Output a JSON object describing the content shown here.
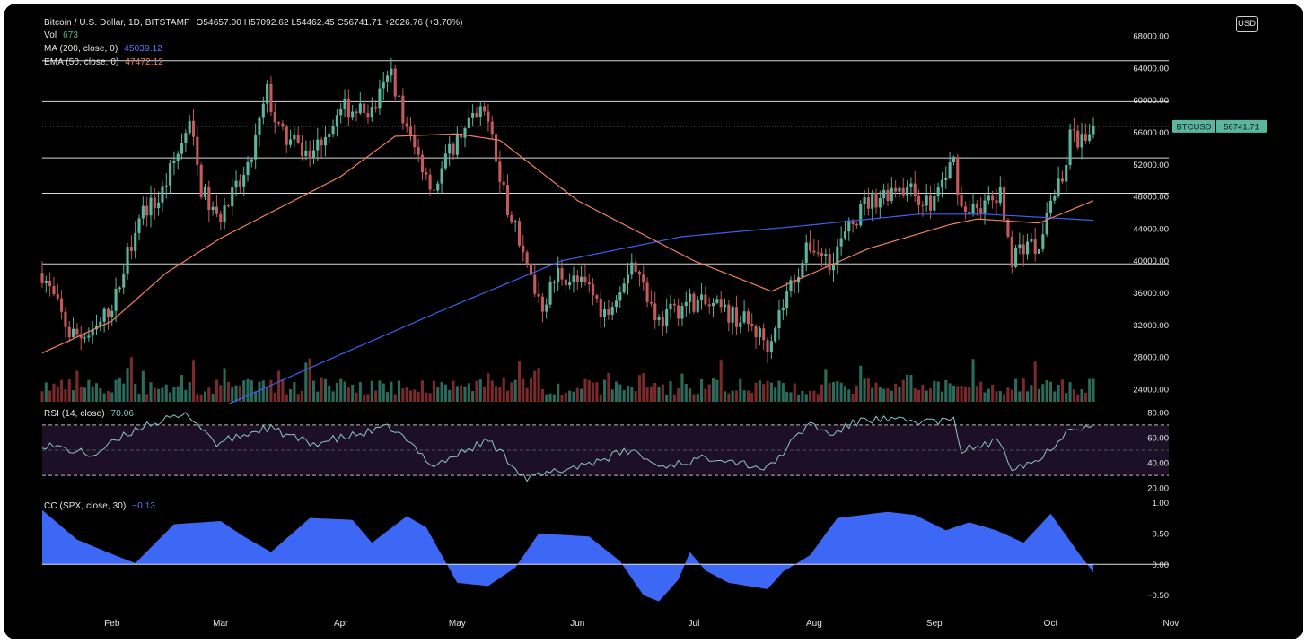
{
  "header": {
    "title": "Bitcoin / U.S. Dollar, 1D, BITSTAMP",
    "ohlc": "O54657.00 H57092.62 L54462.45 C56741.71 +2026.76 (+3.70%)",
    "vol_label": "Vol",
    "vol_value": "673",
    "ma_label": "MA (200, close, 0)",
    "ma_value": "45039.12",
    "ema_label": "EMA (50, close, 0)",
    "ema_value": "47472.12"
  },
  "currency_button": "USD",
  "last_price_tag": {
    "symbol": "BTCUSD",
    "price": "56741.71"
  },
  "rsi_panel": {
    "label": "RSI (14, close)",
    "value": "70.06"
  },
  "cc_panel": {
    "label": "CC (SPX, close, 30)",
    "value": "−0.13"
  },
  "colors": {
    "background": "#000000",
    "up": "#5bb59f",
    "down": "#c45a5a",
    "ma200": "#3f5ff0",
    "ema50": "#f08060",
    "rsi_line": "#8cc8c0",
    "rsi_band": "#1c0f26",
    "cc_fill": "#3d68f5",
    "text": "#e6e6e6"
  },
  "chart_data": [
    {
      "type": "candlestick",
      "title": "Bitcoin / U.S. Dollar, 1D, BITSTAMP",
      "x_ticks": [
        "Feb",
        "Mar",
        "Apr",
        "May",
        "Jun",
        "Jul",
        "Aug",
        "Sep",
        "Oct",
        "Nov"
      ],
      "y_ticks": [
        "24000.00",
        "28000.00",
        "32000.00",
        "36000.00",
        "40000.00",
        "44000.00",
        "48000.00",
        "52000.00",
        "56000.00",
        "60000.00",
        "64000.00",
        "68000.00"
      ],
      "ylim": [
        21500,
        70000
      ],
      "horizontal_levels": [
        64900,
        59800,
        52800,
        48400,
        39600
      ],
      "last_close": 56741.71,
      "price_anchors": [
        [
          "2021-01-14",
          38500
        ],
        [
          "2021-01-21",
          31000
        ],
        [
          "2021-01-27",
          30500
        ],
        [
          "2021-02-02",
          35500
        ],
        [
          "2021-02-08",
          46000
        ],
        [
          "2021-02-13",
          47500
        ],
        [
          "2021-02-21",
          57000
        ],
        [
          "2021-02-24",
          49000
        ],
        [
          "2021-02-28",
          45000
        ],
        [
          "2021-03-08",
          51000
        ],
        [
          "2021-03-13",
          61000
        ],
        [
          "2021-03-16",
          56000
        ],
        [
          "2021-03-24",
          53000
        ],
        [
          "2021-03-28",
          56000
        ],
        [
          "2021-04-02",
          59000
        ],
        [
          "2021-04-09",
          58500
        ],
        [
          "2021-04-14",
          63500
        ],
        [
          "2021-04-18",
          56000
        ],
        [
          "2021-04-25",
          49000
        ],
        [
          "2021-04-29",
          53500
        ],
        [
          "2021-05-03",
          57000
        ],
        [
          "2021-05-09",
          58500
        ],
        [
          "2021-05-12",
          49500
        ],
        [
          "2021-05-17",
          43000
        ],
        [
          "2021-05-19",
          39000
        ],
        [
          "2021-05-23",
          34500
        ],
        [
          "2021-05-27",
          38500
        ],
        [
          "2021-06-04",
          36500
        ],
        [
          "2021-06-08",
          33500
        ],
        [
          "2021-06-15",
          40000
        ],
        [
          "2021-06-22",
          32500
        ],
        [
          "2021-06-30",
          35000
        ],
        [
          "2021-07-07",
          34000
        ],
        [
          "2021-07-14",
          32500
        ],
        [
          "2021-07-20",
          29800
        ],
        [
          "2021-07-26",
          37000
        ],
        [
          "2021-07-31",
          42000
        ],
        [
          "2021-08-05",
          40000
        ],
        [
          "2021-08-14",
          47000
        ],
        [
          "2021-08-23",
          49500
        ],
        [
          "2021-08-31",
          47000
        ],
        [
          "2021-09-06",
          52500
        ],
        [
          "2021-09-08",
          46500
        ],
        [
          "2021-09-14",
          47000
        ],
        [
          "2021-09-18",
          48000
        ],
        [
          "2021-09-21",
          40500
        ],
        [
          "2021-09-25",
          42500
        ],
        [
          "2021-09-28",
          41000
        ],
        [
          "2021-10-01",
          48000
        ],
        [
          "2021-10-04",
          49500
        ],
        [
          "2021-10-06",
          55500
        ],
        [
          "2021-10-11",
          54500
        ],
        [
          "2021-10-12",
          56741.71
        ]
      ],
      "ma200_anchors": [
        [
          "2021-02-28",
          21500
        ],
        [
          "2021-03-28",
          27500
        ],
        [
          "2021-04-28",
          34000
        ],
        [
          "2021-05-28",
          40000
        ],
        [
          "2021-06-28",
          43000
        ],
        [
          "2021-07-28",
          44300
        ],
        [
          "2021-08-28",
          45800
        ],
        [
          "2021-09-14",
          45800
        ],
        [
          "2021-10-12",
          45039.12
        ]
      ],
      "ema50_anchors": [
        [
          "2021-01-14",
          28500
        ],
        [
          "2021-02-01",
          32500
        ],
        [
          "2021-02-15",
          38500
        ],
        [
          "2021-03-01",
          42800
        ],
        [
          "2021-04-01",
          50500
        ],
        [
          "2021-04-15",
          55500
        ],
        [
          "2021-05-01",
          55800
        ],
        [
          "2021-05-12",
          55000
        ],
        [
          "2021-06-01",
          47500
        ],
        [
          "2021-07-01",
          40000
        ],
        [
          "2021-07-21",
          36200
        ],
        [
          "2021-08-15",
          41500
        ],
        [
          "2021-09-05",
          44500
        ],
        [
          "2021-09-12",
          45200
        ],
        [
          "2021-09-28",
          44700
        ],
        [
          "2021-10-12",
          47472.12
        ]
      ]
    },
    {
      "type": "line",
      "title": "RSI (14, close)",
      "y_ticks": [
        "20.00",
        "40.00",
        "60.00",
        "80.00"
      ],
      "ylim": [
        18,
        82
      ],
      "band": [
        30,
        70
      ],
      "midline": 50,
      "anchors": [
        [
          "2021-01-14",
          55
        ],
        [
          "2021-01-27",
          46
        ],
        [
          "2021-02-09",
          70
        ],
        [
          "2021-02-21",
          78
        ],
        [
          "2021-02-28",
          55
        ],
        [
          "2021-03-13",
          68
        ],
        [
          "2021-03-24",
          55
        ],
        [
          "2021-04-02",
          60
        ],
        [
          "2021-04-14",
          68
        ],
        [
          "2021-04-25",
          38
        ],
        [
          "2021-05-09",
          58
        ],
        [
          "2021-05-15",
          40
        ],
        [
          "2021-05-19",
          27
        ],
        [
          "2021-06-04",
          40
        ],
        [
          "2021-06-15",
          50
        ],
        [
          "2021-06-22",
          37
        ],
        [
          "2021-07-07",
          45
        ],
        [
          "2021-07-20",
          35
        ],
        [
          "2021-07-31",
          72
        ],
        [
          "2021-08-05",
          62
        ],
        [
          "2021-08-14",
          75
        ],
        [
          "2021-08-23",
          73
        ],
        [
          "2021-09-06",
          73
        ],
        [
          "2021-09-08",
          50
        ],
        [
          "2021-09-18",
          57
        ],
        [
          "2021-09-21",
          37
        ],
        [
          "2021-09-28",
          42
        ],
        [
          "2021-10-06",
          68
        ],
        [
          "2021-10-12",
          70.06
        ]
      ]
    },
    {
      "type": "area",
      "title": "CC (SPX, close, 30)",
      "y_ticks": [
        "−0.50",
        "0.00",
        "0.50",
        "1.00"
      ],
      "ylim": [
        -0.62,
        1.02
      ],
      "anchors": [
        [
          "2021-01-14",
          0.88
        ],
        [
          "2021-01-23",
          0.4
        ],
        [
          "2021-02-02",
          0.14
        ],
        [
          "2021-02-07",
          0.02
        ],
        [
          "2021-02-17",
          0.65
        ],
        [
          "2021-03-01",
          0.7
        ],
        [
          "2021-03-07",
          0.45
        ],
        [
          "2021-03-14",
          0.2
        ],
        [
          "2021-03-24",
          0.75
        ],
        [
          "2021-04-04",
          0.72
        ],
        [
          "2021-04-09",
          0.35
        ],
        [
          "2021-04-18",
          0.78
        ],
        [
          "2021-04-23",
          0.6
        ],
        [
          "2021-05-01",
          -0.3
        ],
        [
          "2021-05-09",
          -0.35
        ],
        [
          "2021-05-16",
          -0.05
        ],
        [
          "2021-05-22",
          0.5
        ],
        [
          "2021-06-04",
          0.45
        ],
        [
          "2021-06-12",
          0.05
        ],
        [
          "2021-06-18",
          -0.5
        ],
        [
          "2021-06-22",
          -0.6
        ],
        [
          "2021-06-27",
          -0.25
        ],
        [
          "2021-06-30",
          0.2
        ],
        [
          "2021-07-04",
          -0.1
        ],
        [
          "2021-07-10",
          -0.3
        ],
        [
          "2021-07-20",
          -0.4
        ],
        [
          "2021-07-24",
          -0.12
        ],
        [
          "2021-07-31",
          0.15
        ],
        [
          "2021-08-07",
          0.75
        ],
        [
          "2021-08-20",
          0.85
        ],
        [
          "2021-08-27",
          0.8
        ],
        [
          "2021-09-04",
          0.55
        ],
        [
          "2021-09-10",
          0.68
        ],
        [
          "2021-09-17",
          0.55
        ],
        [
          "2021-09-24",
          0.35
        ],
        [
          "2021-10-01",
          0.82
        ],
        [
          "2021-10-08",
          0.2
        ],
        [
          "2021-10-12",
          -0.13
        ]
      ]
    }
  ]
}
